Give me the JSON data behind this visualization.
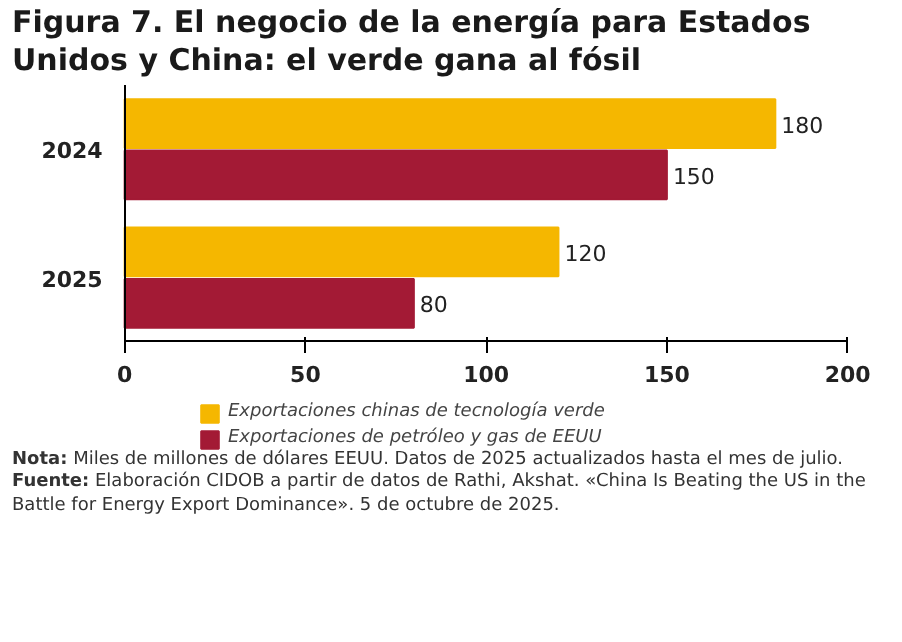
{
  "chart_data": {
    "type": "bar",
    "orientation": "horizontal",
    "title": "Figura 7. El negocio de la energía para Estados Unidos y China: el verde gana al fósil",
    "categories": [
      "2024",
      "2025"
    ],
    "series": [
      {
        "name": "Exportaciones chinas de tecnología verde",
        "color": "#f5b700",
        "values": [
          180,
          120
        ]
      },
      {
        "name": "Exportaciones de petróleo y gas de EEUU",
        "color": "#a31a35",
        "values": [
          150,
          80
        ]
      }
    ],
    "xlim": [
      0,
      200
    ],
    "xticks": [
      0,
      50,
      100,
      150,
      200
    ],
    "data_labels": true,
    "legend": "bottom",
    "annotations": [
      "Nota: Miles de millones de dólares EEUU. Datos de 2025 actualizados hasta el mes de julio.",
      "Fuente: Elaboración CIDOB a partir de datos de Rathi, Akshat. «China Is Beating the US in the Battle for Energy Export Dominance». 5 de octubre de 2025."
    ]
  }
}
